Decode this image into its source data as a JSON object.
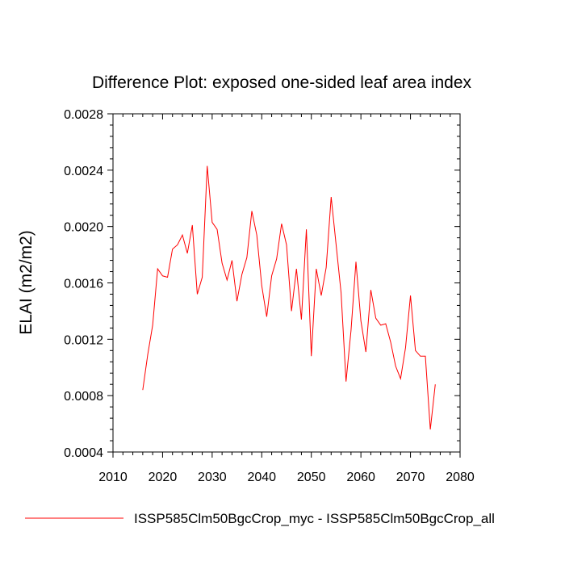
{
  "chart_data": {
    "type": "line",
    "title": "Difference Plot: exposed one-sided leaf area index",
    "xlabel": "",
    "ylabel": "ELAI  (m2/m2)",
    "xlim": [
      2010,
      2080
    ],
    "ylim": [
      0.0004,
      0.0028
    ],
    "xticks": [
      2010,
      2020,
      2030,
      2040,
      2050,
      2060,
      2070,
      2080
    ],
    "xtick_labels": [
      "2010",
      "2020",
      "2030",
      "2040",
      "2050",
      "2060",
      "2070",
      "2080"
    ],
    "yticks": [
      0.0004,
      0.0008,
      0.0012,
      0.0016,
      0.002,
      0.0024,
      0.0028
    ],
    "ytick_labels": [
      "0.0004",
      "0.0008",
      "0.0012",
      "0.0016",
      "0.0020",
      "0.0024",
      "0.0028"
    ],
    "grid": false,
    "legend_position": "bottom",
    "series": [
      {
        "name": "ISSP585Clm50BgcCrop_myc - ISSP585Clm50BgcCrop_all",
        "color": "#ff0000",
        "x": [
          2016,
          2017,
          2018,
          2019,
          2020,
          2021,
          2022,
          2023,
          2024,
          2025,
          2026,
          2027,
          2028,
          2029,
          2030,
          2031,
          2032,
          2033,
          2034,
          2035,
          2036,
          2037,
          2038,
          2039,
          2040,
          2041,
          2042,
          2043,
          2044,
          2045,
          2046,
          2047,
          2048,
          2049,
          2050,
          2051,
          2052,
          2053,
          2054,
          2055,
          2056,
          2057,
          2058,
          2059,
          2060,
          2061,
          2062,
          2063,
          2064,
          2065,
          2066,
          2067,
          2068,
          2069,
          2070,
          2071,
          2072,
          2073,
          2074,
          2075
        ],
        "y": [
          0.00084,
          0.00109,
          0.0013,
          0.0017,
          0.00165,
          0.00164,
          0.00184,
          0.00187,
          0.00194,
          0.00181,
          0.00201,
          0.00152,
          0.00164,
          0.00243,
          0.00203,
          0.00198,
          0.00174,
          0.00162,
          0.00176,
          0.00147,
          0.00166,
          0.00178,
          0.00211,
          0.00194,
          0.00158,
          0.00136,
          0.00165,
          0.00177,
          0.00202,
          0.00187,
          0.0014,
          0.0017,
          0.00134,
          0.00198,
          0.00108,
          0.0017,
          0.00151,
          0.00171,
          0.00221,
          0.00187,
          0.00153,
          0.0009,
          0.00126,
          0.00175,
          0.00133,
          0.00111,
          0.00155,
          0.00135,
          0.0013,
          0.00131,
          0.00118,
          0.00101,
          0.00092,
          0.00114,
          0.00151,
          0.00112,
          0.00108,
          0.00108,
          0.00056,
          0.00088
        ]
      }
    ]
  }
}
